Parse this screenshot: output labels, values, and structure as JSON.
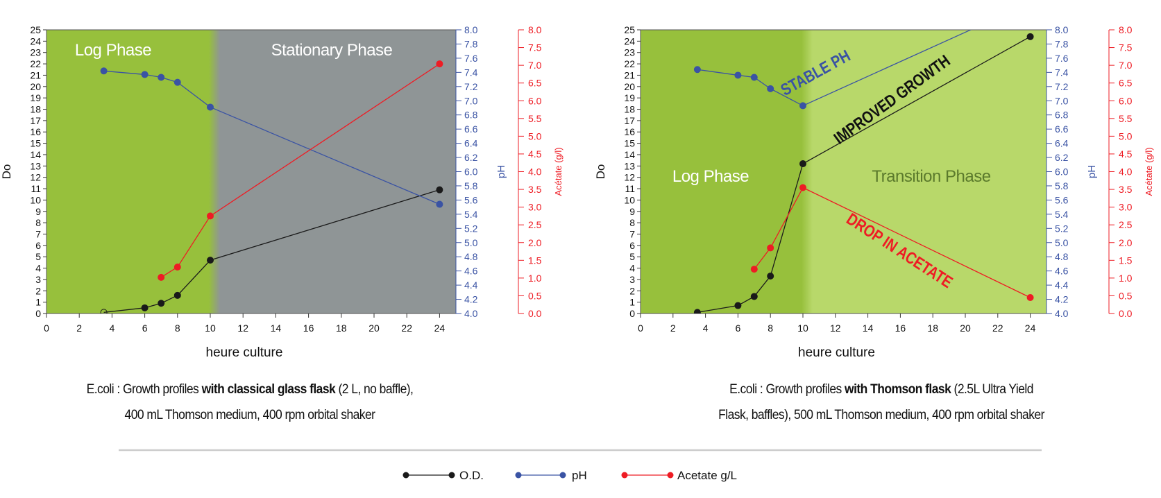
{
  "chart_data": [
    {
      "type": "line",
      "xlabel": "heure culture",
      "ylabel": "Do",
      "y2label": "pH",
      "y3label": "Acétate (g/l)",
      "xlim": [
        0,
        25
      ],
      "ylim": [
        0,
        25
      ],
      "y2lim": [
        4.0,
        8.0
      ],
      "y3lim": [
        0.0,
        8.0
      ],
      "xticks": [
        0,
        2,
        4,
        6,
        8,
        10,
        12,
        14,
        16,
        18,
        20,
        22,
        24
      ],
      "grid": false,
      "phases": [
        {
          "label": "Log Phase",
          "from": 0,
          "to": 10,
          "color": "#97c03c",
          "label_color": "#ffffff"
        },
        {
          "label": "Stationary Phase",
          "from": 10,
          "to": 25,
          "color": "#8f9596",
          "label_color": "#ffffff"
        }
      ],
      "series": [
        {
          "name": "O.D.",
          "axis": "y",
          "color": "#1a1a1a",
          "hollow_first": true,
          "x": [
            3.5,
            6,
            7,
            8,
            10,
            24
          ],
          "y": [
            0.1,
            0.5,
            0.9,
            1.6,
            4.7,
            10.9
          ]
        },
        {
          "name": "pH",
          "axis": "y2",
          "color": "#3a53a4",
          "x": [
            3.5,
            6,
            7,
            8,
            10,
            24
          ],
          "y": [
            7.42,
            7.37,
            7.33,
            7.26,
            6.91,
            5.54
          ]
        },
        {
          "name": "Acetate g/L",
          "axis": "y3",
          "color": "#ee1c24",
          "x": [
            7,
            8,
            10,
            24
          ],
          "y": [
            1.02,
            1.31,
            2.75,
            7.04
          ]
        }
      ],
      "annotations": []
    },
    {
      "type": "line",
      "xlabel": "heure culture",
      "ylabel": "Do",
      "y2label": "pH",
      "y3label": "Acétate (g/l)",
      "xlim": [
        0,
        25
      ],
      "ylim": [
        0,
        25
      ],
      "y2lim": [
        4.0,
        8.0
      ],
      "y3lim": [
        0.0,
        8.0
      ],
      "xticks": [
        0,
        2,
        4,
        6,
        8,
        10,
        12,
        14,
        16,
        18,
        20,
        22,
        24
      ],
      "grid": false,
      "phases": [
        {
          "label": "Log Phase",
          "from": 0,
          "to": 10,
          "color": "#97c03c",
          "label_color": "#ffffff"
        },
        {
          "label": "Transition Phase",
          "from": 10,
          "to": 25,
          "color": "#b8d86a",
          "label_color": "#5b7a2c"
        }
      ],
      "series": [
        {
          "name": "O.D.",
          "axis": "y",
          "color": "#1a1a1a",
          "x": [
            3.5,
            6,
            7,
            8,
            10,
            24
          ],
          "y": [
            0.1,
            0.7,
            1.5,
            3.3,
            13.2,
            24.4
          ]
        },
        {
          "name": "pH",
          "axis": "y2",
          "color": "#3a53a4",
          "x": [
            3.5,
            6,
            7,
            8,
            10,
            24
          ],
          "y": [
            7.44,
            7.36,
            7.33,
            7.17,
            6.93,
            8.38
          ],
          "last_point_off_chart": true
        },
        {
          "name": "Acetate g/L",
          "axis": "y3",
          "color": "#ee1c24",
          "x": [
            7,
            8,
            10,
            24
          ],
          "y": [
            1.25,
            1.85,
            3.55,
            0.45
          ]
        }
      ],
      "annotations": [
        {
          "text": "STABLE PH",
          "color": "#3a53a4"
        },
        {
          "text": "IMPROVED GROWTH",
          "color": "#111111"
        },
        {
          "text": "DROP IN ACETATE",
          "color": "#ee1c24"
        }
      ]
    }
  ],
  "captions": [
    {
      "pre": "E.coli : Growth profiles ",
      "bold": "with classical glass flask",
      "post": " (2 L,  no baffle),",
      "line2": "400 mL Thomson medium, 400 rpm orbital shaker"
    },
    {
      "pre": "E.coli : Growth profiles ",
      "bold": "with Thomson flask",
      "post": " (2.5L Ultra Yield",
      "line2": "Flask, baffles), 500 mL Thomson medium, 400 rpm orbital shaker"
    }
  ],
  "legend": {
    "placement": "bottom",
    "items": [
      {
        "label": "O.D.",
        "color": "#1a1a1a"
      },
      {
        "label": "pH",
        "color": "#3a53a4"
      },
      {
        "label": "Acetate g/L",
        "color": "#ee1c24"
      }
    ]
  },
  "colors": {
    "separator": "#cccccc",
    "ph_axis": "#3a53a4",
    "acetate_axis": "#ee1c24"
  }
}
